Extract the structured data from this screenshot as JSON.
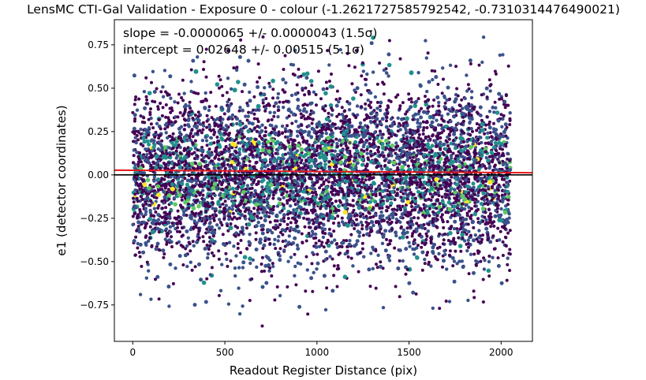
{
  "chart_data": {
    "type": "scatter",
    "title": "LensMC CTI-Gal Validation - Exposure 0 - colour (-1.2621727585792542, -0.7310314476490021)",
    "xlabel": "Readout Register Distance (pix)",
    "ylabel": "e1 (detector coordinates)",
    "xlim": [
      -100,
      2170
    ],
    "ylim": [
      -0.96,
      0.895
    ],
    "xticks": [
      0,
      500,
      1000,
      1500,
      2000
    ],
    "xtick_labels": [
      "0",
      "500",
      "1000",
      "1500",
      "2000"
    ],
    "yticks": [
      -0.75,
      -0.5,
      -0.25,
      0.0,
      0.25,
      0.5,
      0.75
    ],
    "ytick_labels": [
      "−0.75",
      "−0.50",
      "−0.25",
      "0.00",
      "0.25",
      "0.50",
      "0.75"
    ],
    "grid": false,
    "annotations": [
      "slope = -0.0000065 +/- 0.0000043 (1.5σ)",
      "intercept = 0.02648 +/- 0.00515 (5.1σ)"
    ],
    "fit_line": {
      "slope": -6.5e-06,
      "intercept": 0.02648,
      "color": "#e31a1c"
    },
    "reference_line": {
      "y": 0.0,
      "color": "#000000"
    },
    "point_distribution": {
      "x_range": [
        0,
        2050
      ],
      "y_center": 0.0,
      "y_spread": 0.25,
      "point_count": 6000,
      "colormap": "viridis"
    },
    "colors": {
      "viridis_dark": "#440154",
      "viridis_blue": "#3b528b",
      "viridis_teal": "#21918c",
      "viridis_green": "#5ec962",
      "viridis_yellow": "#fde725"
    }
  }
}
